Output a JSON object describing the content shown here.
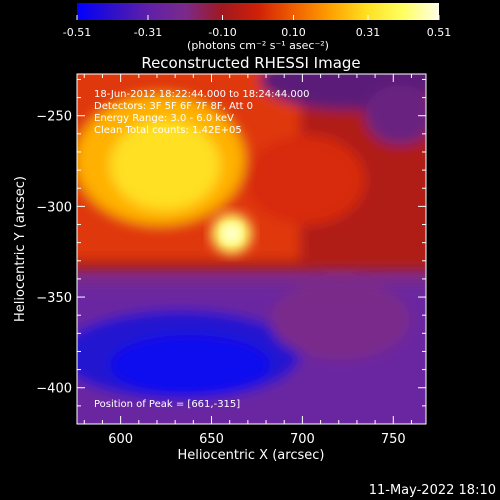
{
  "chart_data": {
    "type": "heatmap",
    "title": "Reconstructed RHESSI Image",
    "xlabel": "Heliocentric X (arcsec)",
    "ylabel": "Heliocentric Y (arcsec)",
    "xlim": [
      576,
      768
    ],
    "ylim": [
      -420,
      -227
    ],
    "x_ticks": [
      600,
      650,
      700,
      750
    ],
    "y_ticks": [
      -400,
      -350,
      -300,
      -250
    ],
    "colorbar": {
      "min": -0.51,
      "max": 0.51,
      "tick_values": [
        -0.51,
        -0.31,
        -0.1,
        0.1,
        0.31,
        0.51
      ],
      "tick_labels": [
        "-0.51",
        "-0.31",
        "-0.10",
        "0.10",
        "0.31",
        "0.51"
      ],
      "units_label": "(photons cm⁻² s⁻¹ asec⁻²)",
      "colormap": [
        "#0000ff",
        "#3010c8",
        "#6020a8",
        "#7a2a8a",
        "#a01820",
        "#d02008",
        "#f06000",
        "#ffa000",
        "#ffe020",
        "#ffff60",
        "#ffffe8"
      ]
    },
    "annotations": {
      "time_range": "18-Jun-2012 18:22:44.000 to 18:24:44.000",
      "detectors": "Detectors: 3F 5F 6F 7F 8F, Att 0",
      "energy": "Energy Range: 3.0 - 6.0 keV",
      "clean": "Clean    Total counts: 1.42E+05",
      "peak": "Position of Peak = [661,-315]"
    },
    "peak_position": [
      661,
      -315
    ],
    "peak_value": 0.51,
    "grid": false
  },
  "footer": {
    "date": "11-May-2022 18:10"
  }
}
